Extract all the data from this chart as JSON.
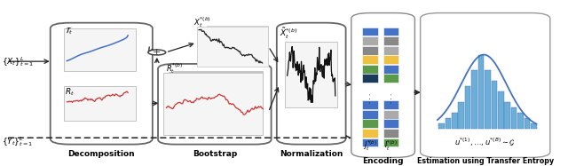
{
  "fig_width": 6.4,
  "fig_height": 1.87,
  "dpi": 100,
  "bg_color": "#ffffff",
  "blue_color": "#4472c4",
  "red_color": "#cc3333",
  "light_blue": "#6baed6",
  "yellow_color": "#f0c040",
  "green_color": "#5a9a4a",
  "dark_navy": "#1a3a5c",
  "gray_color": "#888888",
  "dark_gray": "#555555",
  "colors_left": [
    "#4472c4",
    "#aaaaaa",
    "#888888",
    "#f0c040",
    "#5a9a4a",
    "#1a3a5c",
    "#4472c4",
    "#4472c4",
    "#5a9a4a",
    "#f0c040",
    "#4472c4"
  ],
  "colors_right": [
    "#4472c4",
    "#888888",
    "#aaaaaa",
    "#f0c040",
    "#4472c4",
    "#5a9a4a",
    "#4472c4",
    "#aaaaaa",
    "#4472c4",
    "#888888",
    "#5a9a4a"
  ],
  "hist_vals": [
    1,
    2,
    3,
    5,
    8,
    11,
    14,
    11,
    9,
    7,
    5,
    4,
    3,
    2,
    1
  ]
}
